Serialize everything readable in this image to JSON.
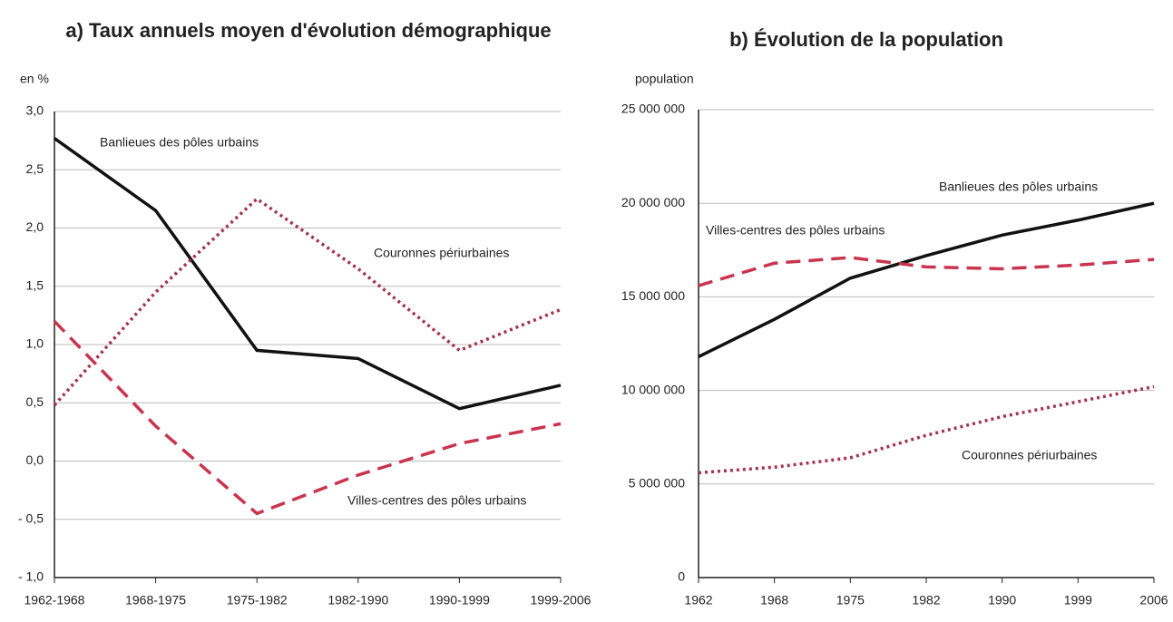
{
  "chart_data": [
    {
      "type": "line",
      "title": "a) Taux annuels moyen d'évolution démographique",
      "y_label": "en %",
      "categories": [
        "1962-1968",
        "1968-1975",
        "1975-1982",
        "1982-1990",
        "1990-1999",
        "1999-2006"
      ],
      "series": [
        {
          "name": "Banlieues des pôles urbains",
          "color": "#111111",
          "style": "solid",
          "values": [
            2.77,
            2.15,
            0.95,
            0.88,
            0.45,
            0.65
          ]
        },
        {
          "name": "Couronnes périurbaines",
          "color": "#a3334f",
          "style": "dotted",
          "values": [
            0.48,
            1.45,
            2.25,
            1.65,
            0.95,
            1.3
          ]
        },
        {
          "name": "Villes-centres des pôles urbains",
          "color": "#c9344f",
          "style": "dashed",
          "values": [
            1.2,
            0.3,
            -0.45,
            -0.12,
            0.15,
            0.32
          ]
        }
      ],
      "ylim": [
        -1,
        3
      ],
      "yticks": [
        {
          "value": 3,
          "label": "3,0"
        },
        {
          "value": 2.5,
          "label": "2,5"
        },
        {
          "value": 2,
          "label": "2,0"
        },
        {
          "value": 1.5,
          "label": "1,5"
        },
        {
          "value": 1,
          "label": "1,0"
        },
        {
          "value": 0.5,
          "label": "0,5"
        },
        {
          "value": 0,
          "label": "0,0"
        },
        {
          "value": -0.5,
          "label": "- 0,5"
        },
        {
          "value": -1,
          "label": "- 1,0"
        }
      ],
      "grid": true
    },
    {
      "type": "line",
      "title": "b) Évolution de la population",
      "y_label": "population",
      "categories": [
        "1962",
        "1968",
        "1975",
        "1982",
        "1990",
        "1999",
        "2006"
      ],
      "series": [
        {
          "name": "Banlieues des pôles urbains",
          "color": "#111111",
          "style": "solid",
          "values": [
            11800000,
            13800000,
            16000000,
            17200000,
            18300000,
            19100000,
            20000000
          ]
        },
        {
          "name": "Villes-centres des pôles urbains",
          "color": "#c9344f",
          "style": "dashed",
          "values": [
            15600000,
            16800000,
            17100000,
            16600000,
            16500000,
            16700000,
            17000000
          ]
        },
        {
          "name": "Couronnes périurbaines",
          "color": "#a3334f",
          "style": "dotted",
          "values": [
            5600000,
            5900000,
            6400000,
            7600000,
            8600000,
            9400000,
            10200000
          ]
        }
      ],
      "ylim": [
        0,
        25000000
      ],
      "yticks": [
        0,
        {
          "value": 5000000,
          "label": "5 000 000"
        },
        {
          "value": 10000000,
          "label": "10 000 000"
        },
        {
          "value": 15000000,
          "label": "15 000 000"
        },
        {
          "value": 20000000,
          "label": "20 000 000"
        },
        {
          "value": 25000000,
          "label": "25 000 000"
        }
      ],
      "grid": true
    }
  ]
}
